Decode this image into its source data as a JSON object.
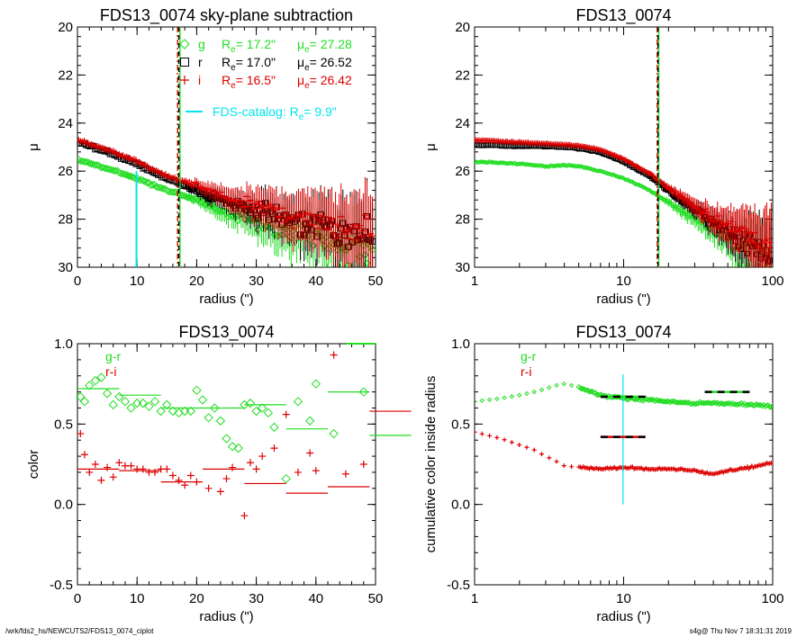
{
  "footer": {
    "left": "/wrk/fds2_hs/NEWCUTS2/FDS13_0074_ciplot",
    "right": "s4g@  Thu Nov  7 18:31:31 2019"
  },
  "colors": {
    "g": "#22dd22",
    "r": "#000000",
    "i": "#dd0000",
    "cyan": "#00e5ee"
  },
  "chart_data": [
    {
      "id": "profile-linear",
      "type": "scatter",
      "title": "FDS13_0074 sky-plane subtraction",
      "xlabel": "radius (\")",
      "ylabel": "μ",
      "xlim": [
        0,
        50
      ],
      "ylim": [
        30,
        20
      ],
      "xticks": [
        "0",
        "10",
        "20",
        "30",
        "40",
        "50"
      ],
      "yticks": [
        "20",
        "22",
        "24",
        "26",
        "28",
        "30"
      ],
      "legend": [
        {
          "band": "g",
          "label": "g",
          "Re": "R",
          "Re_sub": "e",
          "Re_val": "=  17.2\"",
          "mu": "μ",
          "mu_sub": "e",
          "mu_val": "= 27.28",
          "color": "#22dd22",
          "marker": "diamond"
        },
        {
          "band": "r",
          "label": "r",
          "Re": "R",
          "Re_sub": "e",
          "Re_val": "=  17.0\"",
          "mu": "μ",
          "mu_sub": "e",
          "mu_val": "= 26.52",
          "color": "#000000",
          "marker": "square"
        },
        {
          "band": "i",
          "label": "i",
          "Re": "R",
          "Re_sub": "e",
          "Re_val": "=  16.5\"",
          "mu": "μ",
          "mu_sub": "e",
          "mu_val": "= 26.42",
          "color": "#dd0000",
          "marker": "plus"
        }
      ],
      "catalog_label": "FDS-catalog: R",
      "catalog_sub": "e",
      "catalog_val": "=   9.9\"",
      "catalog_re": 9.9,
      "vlines": [
        16.8,
        17.2,
        17.0
      ],
      "series": [
        {
          "name": "g",
          "r": [
            0,
            5,
            10,
            15,
            20,
            25,
            30,
            35,
            40,
            45,
            50
          ],
          "mu": [
            25.5,
            25.9,
            26.3,
            26.8,
            27.2,
            27.7,
            28.1,
            28.5,
            28.8,
            29.1,
            29.3
          ]
        },
        {
          "name": "r",
          "r": [
            0,
            5,
            10,
            15,
            20,
            25,
            30,
            35,
            40,
            45,
            50
          ],
          "mu": [
            24.8,
            25.2,
            25.7,
            26.3,
            26.8,
            27.3,
            27.7,
            28.0,
            28.3,
            28.5,
            28.7
          ]
        },
        {
          "name": "i",
          "r": [
            0,
            5,
            10,
            15,
            20,
            25,
            30,
            35,
            40,
            45,
            50
          ],
          "mu": [
            24.7,
            25.1,
            25.6,
            26.2,
            26.6,
            27.1,
            27.5,
            27.8,
            28.1,
            28.3,
            28.5
          ]
        }
      ]
    },
    {
      "id": "profile-log",
      "type": "scatter",
      "title": "FDS13_0074",
      "xlabel": "radius (\")",
      "ylabel": "μ",
      "xscale": "log",
      "xlim": [
        1,
        100
      ],
      "ylim": [
        30,
        20
      ],
      "xticks": [
        "1",
        "10",
        "100"
      ],
      "yticks": [
        "20",
        "22",
        "24",
        "26",
        "28",
        "30"
      ],
      "vlines": [
        16.8,
        17.2,
        17.0
      ],
      "series": [
        {
          "name": "g",
          "r": [
            1,
            2,
            3,
            4,
            5,
            7,
            10,
            15,
            20,
            30,
            50,
            100
          ],
          "mu": [
            25.6,
            25.7,
            25.8,
            25.75,
            25.8,
            26.0,
            26.3,
            26.8,
            27.3,
            28.0,
            28.8,
            29.7
          ]
        },
        {
          "name": "r",
          "r": [
            1,
            2,
            3,
            4,
            5,
            7,
            10,
            15,
            20,
            30,
            50,
            100
          ],
          "mu": [
            24.9,
            24.95,
            24.95,
            25.0,
            25.05,
            25.2,
            25.6,
            26.2,
            26.8,
            27.6,
            28.5,
            29.5
          ]
        },
        {
          "name": "i",
          "r": [
            1,
            2,
            3,
            4,
            5,
            7,
            10,
            15,
            20,
            30,
            50,
            100
          ],
          "mu": [
            24.7,
            24.8,
            24.85,
            24.9,
            24.95,
            25.1,
            25.5,
            26.1,
            26.7,
            27.5,
            28.3,
            29.3
          ]
        }
      ]
    },
    {
      "id": "color-linear",
      "type": "scatter",
      "title": "FDS13_0074",
      "xlabel": "radius (\")",
      "ylabel": "color",
      "xlim": [
        0,
        50
      ],
      "ylim": [
        -0.5,
        1.0
      ],
      "xticks": [
        "0",
        "10",
        "20",
        "30",
        "40",
        "50"
      ],
      "yticks": [
        "-0.5",
        "0.0",
        "0.5",
        "1.0"
      ],
      "legend": [
        {
          "label": "g-r",
          "color": "#22dd22"
        },
        {
          "label": "r-i",
          "color": "#dd0000"
        }
      ],
      "series": [
        {
          "name": "g-r",
          "x": [
            0.5,
            1.2,
            2,
            3,
            4,
            5,
            6,
            7,
            8,
            9,
            10,
            11,
            12,
            13,
            14,
            15,
            16,
            17,
            18,
            19,
            20,
            21,
            22,
            23,
            24,
            25,
            26,
            27,
            28,
            29,
            30,
            31,
            32,
            33,
            35,
            37,
            39,
            40,
            43,
            48
          ],
          "y": [
            0.67,
            0.64,
            0.74,
            0.77,
            0.79,
            0.69,
            0.62,
            0.67,
            0.64,
            0.6,
            0.63,
            0.63,
            0.61,
            0.64,
            0.58,
            0.62,
            0.58,
            0.57,
            0.58,
            0.58,
            0.71,
            0.65,
            0.54,
            0.6,
            0.52,
            0.41,
            0.36,
            0.35,
            0.62,
            0.63,
            0.58,
            0.6,
            0.57,
            0.48,
            0.16,
            0.64,
            0.52,
            0.75,
            0.44,
            0.7
          ]
        },
        {
          "name": "r-i",
          "x": [
            0.5,
            1.2,
            2,
            3,
            4,
            5,
            6,
            7,
            8,
            9,
            10,
            11,
            12,
            13,
            14,
            15,
            16,
            17,
            18,
            19,
            20,
            22,
            24,
            25,
            26,
            28,
            29,
            30,
            31,
            33,
            35,
            37,
            39,
            40,
            43,
            45,
            48
          ],
          "y": [
            0.44,
            0.31,
            0.2,
            0.25,
            0.15,
            0.23,
            0.17,
            0.26,
            0.24,
            0.24,
            0.22,
            0.22,
            0.2,
            0.2,
            0.22,
            0.22,
            0.18,
            0.15,
            0.12,
            0.18,
            0.14,
            0.1,
            0.08,
            0.16,
            0.23,
            -0.07,
            0.26,
            0.22,
            0.3,
            0.35,
            0.56,
            0.2,
            0.32,
            0.21,
            0.93,
            0.19,
            0.25
          ]
        },
        {
          "name": "g-r-bins",
          "x0": [
            0,
            7,
            14,
            21,
            28,
            35,
            42,
            49
          ],
          "x1": [
            7,
            14,
            21,
            28,
            35,
            42,
            49,
            56
          ],
          "y": [
            0.72,
            0.68,
            0.6,
            0.6,
            0.62,
            0.47,
            0.7,
            0.43
          ]
        },
        {
          "name": "r-i-bins",
          "x0": [
            0,
            7,
            14,
            21,
            28,
            35,
            42,
            49
          ],
          "x1": [
            7,
            14,
            21,
            28,
            35,
            42,
            49,
            56
          ],
          "y": [
            0.22,
            0.21,
            0.14,
            0.22,
            0.13,
            0.07,
            0.11,
            0.58
          ]
        }
      ]
    },
    {
      "id": "cumulative-color",
      "type": "scatter",
      "title": "FDS13_0074",
      "xlabel": "radius (\")",
      "ylabel": "cumulative color inside radius",
      "xscale": "log",
      "xlim": [
        1,
        100
      ],
      "ylim": [
        -0.5,
        1.0
      ],
      "xticks": [
        "1",
        "10",
        "100"
      ],
      "yticks": [
        "-0.5",
        "0.0",
        "0.5",
        "1.0"
      ],
      "legend": [
        {
          "label": "g-r",
          "color": "#22dd22"
        },
        {
          "label": "r-i",
          "color": "#dd0000"
        }
      ],
      "catalog_re": 9.9,
      "series": [
        {
          "name": "g-r",
          "r": [
            1.0,
            1.5,
            2.0,
            2.5,
            3.0,
            3.5,
            4.0,
            5.0,
            7.0,
            10.0,
            15.0,
            20.0,
            30.0,
            50.0,
            70.0,
            100.0
          ],
          "y": [
            0.64,
            0.66,
            0.68,
            0.7,
            0.72,
            0.74,
            0.75,
            0.73,
            0.68,
            0.66,
            0.65,
            0.64,
            0.63,
            0.63,
            0.62,
            0.61
          ]
        },
        {
          "name": "r-i",
          "r": [
            1.0,
            1.5,
            2.0,
            2.5,
            3.0,
            3.5,
            4.0,
            5.0,
            7.0,
            10.0,
            15.0,
            20.0,
            30.0,
            40.0,
            50.0,
            70.0,
            100.0
          ],
          "y": [
            0.45,
            0.41,
            0.37,
            0.34,
            0.3,
            0.27,
            0.24,
            0.23,
            0.22,
            0.23,
            0.22,
            0.22,
            0.21,
            0.19,
            0.21,
            0.23,
            0.26
          ]
        },
        {
          "name": "catalog-g-r",
          "x0": 7.0,
          "x1": 14.0,
          "y": 0.67
        },
        {
          "name": "catalog-r-i",
          "x0": 7.0,
          "x1": 14.0,
          "y": 0.42
        },
        {
          "name": "outer-g-r",
          "x0": 35.0,
          "x1": 70.0,
          "y": 0.7
        }
      ]
    }
  ]
}
